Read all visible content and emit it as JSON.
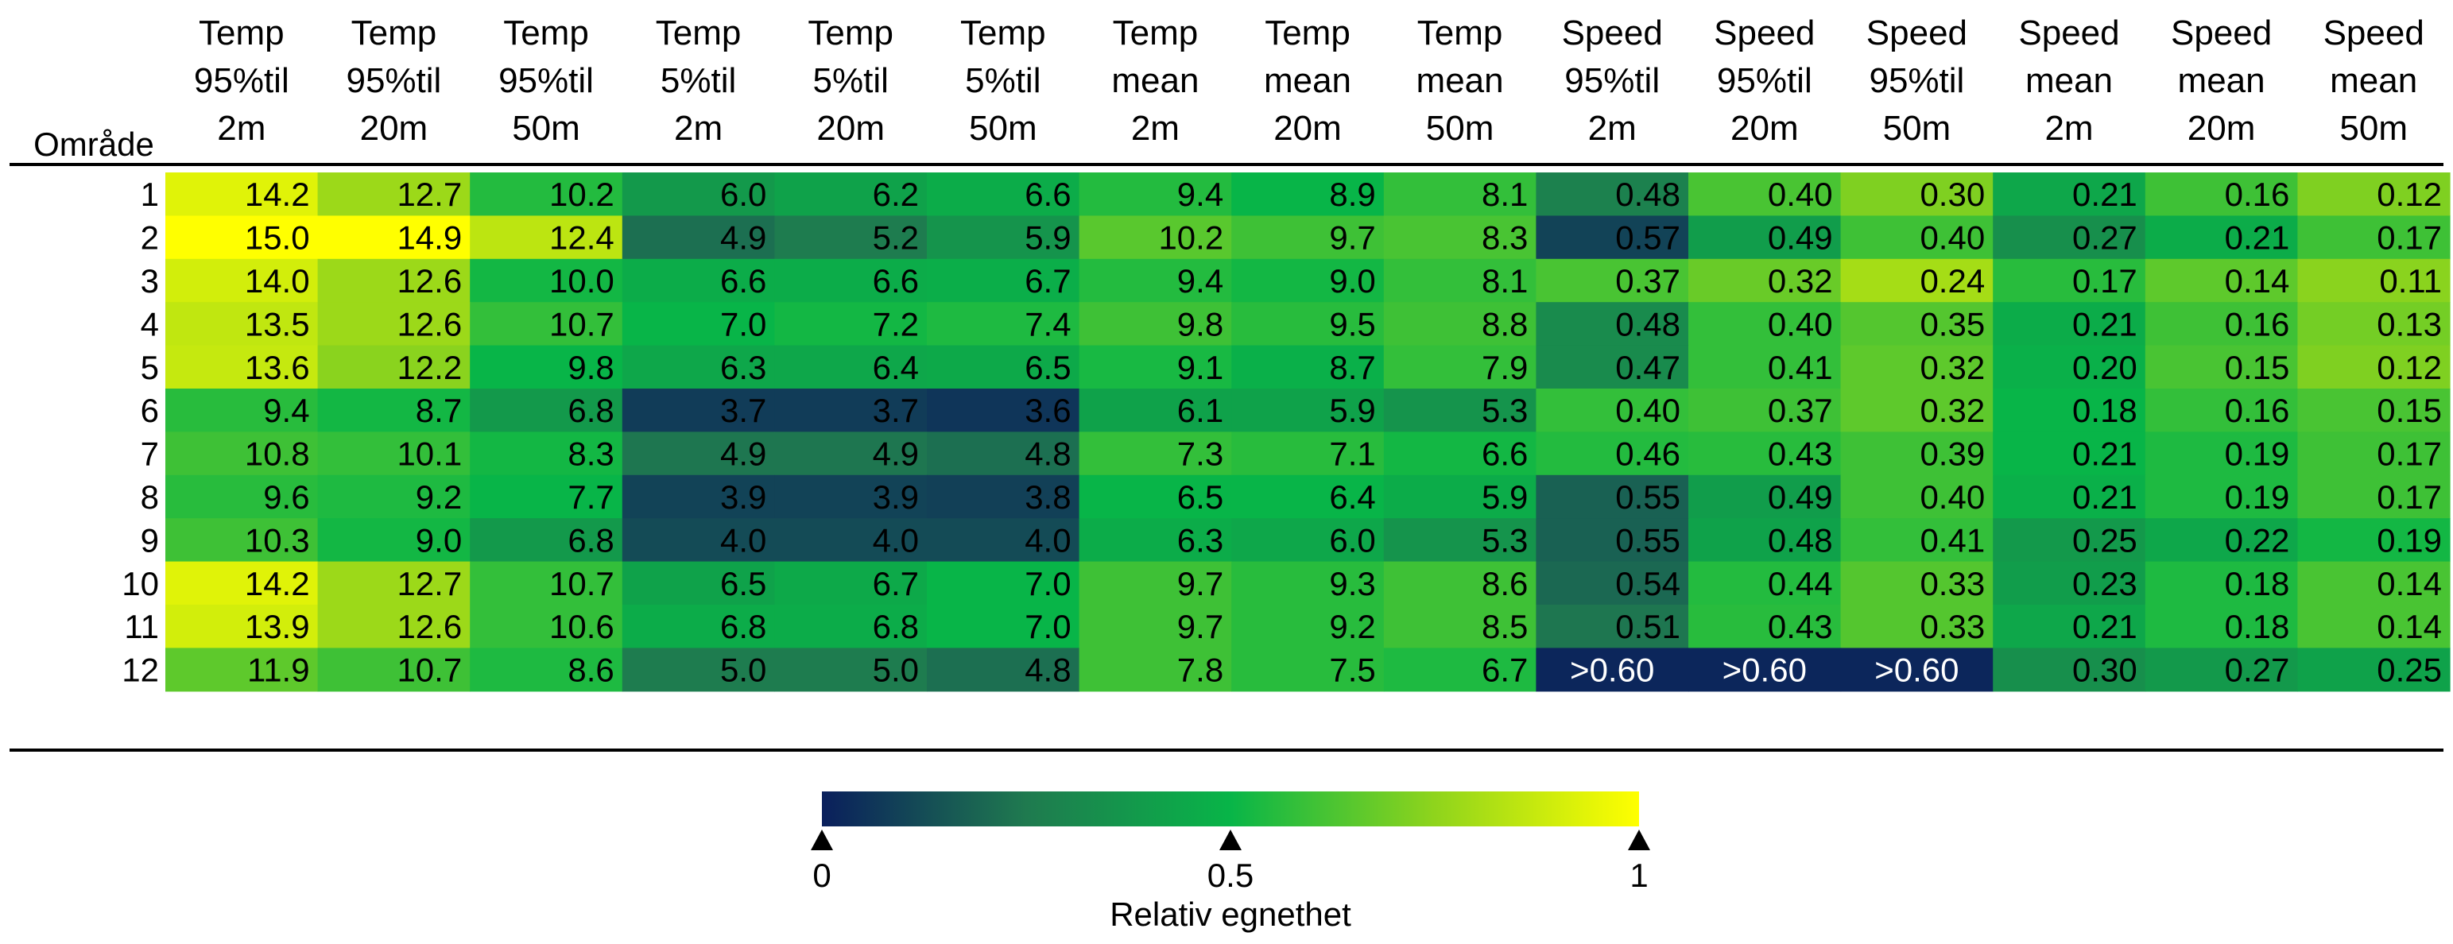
{
  "chart_data": {
    "type": "heatmap",
    "row_header": "Område",
    "columns": [
      [
        "Temp",
        "95%til",
        "2m"
      ],
      [
        "Temp",
        "95%til",
        "20m"
      ],
      [
        "Temp",
        "95%til",
        "50m"
      ],
      [
        "Temp",
        "5%til",
        "2m"
      ],
      [
        "Temp",
        "5%til",
        "20m"
      ],
      [
        "Temp",
        "5%til",
        "50m"
      ],
      [
        "Temp",
        "mean",
        "2m"
      ],
      [
        "Temp",
        "mean",
        "20m"
      ],
      [
        "Temp",
        "mean",
        "50m"
      ],
      [
        "Speed",
        "95%til",
        "2m"
      ],
      [
        "Speed",
        "95%til",
        "20m"
      ],
      [
        "Speed",
        "95%til",
        "50m"
      ],
      [
        "Speed",
        "mean",
        "2m"
      ],
      [
        "Speed",
        "mean",
        "20m"
      ],
      [
        "Speed",
        "mean",
        "50m"
      ]
    ],
    "rows": [
      "1",
      "2",
      "3",
      "4",
      "5",
      "6",
      "7",
      "8",
      "9",
      "10",
      "11",
      "12"
    ],
    "cells": [
      [
        "14.2",
        "12.7",
        "10.2",
        "6.0",
        "6.2",
        "6.6",
        "9.4",
        "8.9",
        "8.1",
        "0.48",
        "0.40",
        "0.30",
        "0.21",
        "0.16",
        "0.12"
      ],
      [
        "15.0",
        "14.9",
        "12.4",
        "4.9",
        "5.2",
        "5.9",
        "10.2",
        "9.7",
        "8.3",
        "0.57",
        "0.49",
        "0.40",
        "0.27",
        "0.21",
        "0.17"
      ],
      [
        "14.0",
        "12.6",
        "10.0",
        "6.6",
        "6.6",
        "6.7",
        "9.4",
        "9.0",
        "8.1",
        "0.37",
        "0.32",
        "0.24",
        "0.17",
        "0.14",
        "0.11"
      ],
      [
        "13.5",
        "12.6",
        "10.7",
        "7.0",
        "7.2",
        "7.4",
        "9.8",
        "9.5",
        "8.8",
        "0.48",
        "0.40",
        "0.35",
        "0.21",
        "0.16",
        "0.13"
      ],
      [
        "13.6",
        "12.2",
        "9.8",
        "6.3",
        "6.4",
        "6.5",
        "9.1",
        "8.7",
        "7.9",
        "0.47",
        "0.41",
        "0.32",
        "0.20",
        "0.15",
        "0.12"
      ],
      [
        "9.4",
        "8.7",
        "6.8",
        "3.7",
        "3.7",
        "3.6",
        "6.1",
        "5.9",
        "5.3",
        "0.40",
        "0.37",
        "0.32",
        "0.18",
        "0.16",
        "0.15"
      ],
      [
        "10.8",
        "10.1",
        "8.3",
        "4.9",
        "4.9",
        "4.8",
        "7.3",
        "7.1",
        "6.6",
        "0.46",
        "0.43",
        "0.39",
        "0.21",
        "0.19",
        "0.17"
      ],
      [
        "9.6",
        "9.2",
        "7.7",
        "3.9",
        "3.9",
        "3.8",
        "6.5",
        "6.4",
        "5.9",
        "0.55",
        "0.49",
        "0.40",
        "0.21",
        "0.19",
        "0.17"
      ],
      [
        "10.3",
        "9.0",
        "6.8",
        "4.0",
        "4.0",
        "4.0",
        "6.3",
        "6.0",
        "5.3",
        "0.55",
        "0.48",
        "0.41",
        "0.25",
        "0.22",
        "0.19"
      ],
      [
        "14.2",
        "12.7",
        "10.7",
        "6.5",
        "6.7",
        "7.0",
        "9.7",
        "9.3",
        "8.6",
        "0.54",
        "0.44",
        "0.33",
        "0.23",
        "0.18",
        "0.14"
      ],
      [
        "13.9",
        "12.6",
        "10.6",
        "6.8",
        "6.8",
        "7.0",
        "9.7",
        "9.2",
        "8.5",
        "0.51",
        "0.43",
        "0.33",
        "0.21",
        "0.18",
        "0.14"
      ],
      [
        "11.9",
        "10.7",
        "8.6",
        "5.0",
        "5.0",
        "4.8",
        "7.8",
        "7.5",
        "6.7",
        ">0.60",
        ">0.60",
        ">0.60",
        "0.30",
        "0.27",
        "0.25"
      ]
    ],
    "relative_suitability": [
      [
        0.93,
        0.78,
        0.55,
        0.38,
        0.42,
        0.46,
        0.55,
        0.5,
        0.58,
        0.28,
        0.62,
        0.72,
        0.44,
        0.6,
        0.72
      ],
      [
        1.0,
        1.0,
        0.85,
        0.22,
        0.26,
        0.36,
        0.65,
        0.6,
        0.62,
        0.1,
        0.4,
        0.6,
        0.34,
        0.46,
        0.6
      ],
      [
        0.9,
        0.78,
        0.52,
        0.46,
        0.46,
        0.47,
        0.55,
        0.52,
        0.58,
        0.62,
        0.68,
        0.8,
        0.56,
        0.66,
        0.74
      ],
      [
        0.86,
        0.78,
        0.58,
        0.5,
        0.52,
        0.54,
        0.6,
        0.56,
        0.6,
        0.32,
        0.58,
        0.64,
        0.46,
        0.6,
        0.7
      ],
      [
        0.87,
        0.74,
        0.5,
        0.44,
        0.44,
        0.45,
        0.53,
        0.48,
        0.58,
        0.32,
        0.58,
        0.66,
        0.48,
        0.62,
        0.72
      ],
      [
        0.56,
        0.52,
        0.38,
        0.08,
        0.08,
        0.06,
        0.42,
        0.42,
        0.36,
        0.58,
        0.6,
        0.66,
        0.5,
        0.58,
        0.62
      ],
      [
        0.6,
        0.58,
        0.52,
        0.24,
        0.24,
        0.22,
        0.58,
        0.56,
        0.52,
        0.55,
        0.56,
        0.6,
        0.5,
        0.54,
        0.6
      ],
      [
        0.56,
        0.54,
        0.5,
        0.1,
        0.1,
        0.09,
        0.5,
        0.5,
        0.46,
        0.18,
        0.4,
        0.6,
        0.48,
        0.54,
        0.6
      ],
      [
        0.6,
        0.52,
        0.38,
        0.12,
        0.12,
        0.12,
        0.46,
        0.44,
        0.36,
        0.18,
        0.42,
        0.58,
        0.38,
        0.44,
        0.52
      ],
      [
        0.93,
        0.78,
        0.58,
        0.42,
        0.45,
        0.5,
        0.6,
        0.56,
        0.6,
        0.2,
        0.55,
        0.64,
        0.4,
        0.54,
        0.62
      ],
      [
        0.9,
        0.78,
        0.58,
        0.46,
        0.46,
        0.5,
        0.6,
        0.56,
        0.6,
        0.24,
        0.56,
        0.64,
        0.44,
        0.54,
        0.62
      ],
      [
        0.66,
        0.6,
        0.54,
        0.26,
        0.26,
        0.22,
        0.6,
        0.56,
        0.54,
        0.02,
        0.02,
        0.02,
        0.34,
        0.38,
        0.42
      ]
    ],
    "colorbar": {
      "label": "Relativ egnethet",
      "range": [
        0,
        1
      ],
      "ticks": [
        0,
        0.5,
        1
      ],
      "tick_labels": [
        "0",
        "0.5",
        "1"
      ],
      "colors": [
        "#0a1f5c",
        "#1f7a4f",
        "#08b548",
        "#8fd41c",
        "#ffff00"
      ]
    }
  }
}
